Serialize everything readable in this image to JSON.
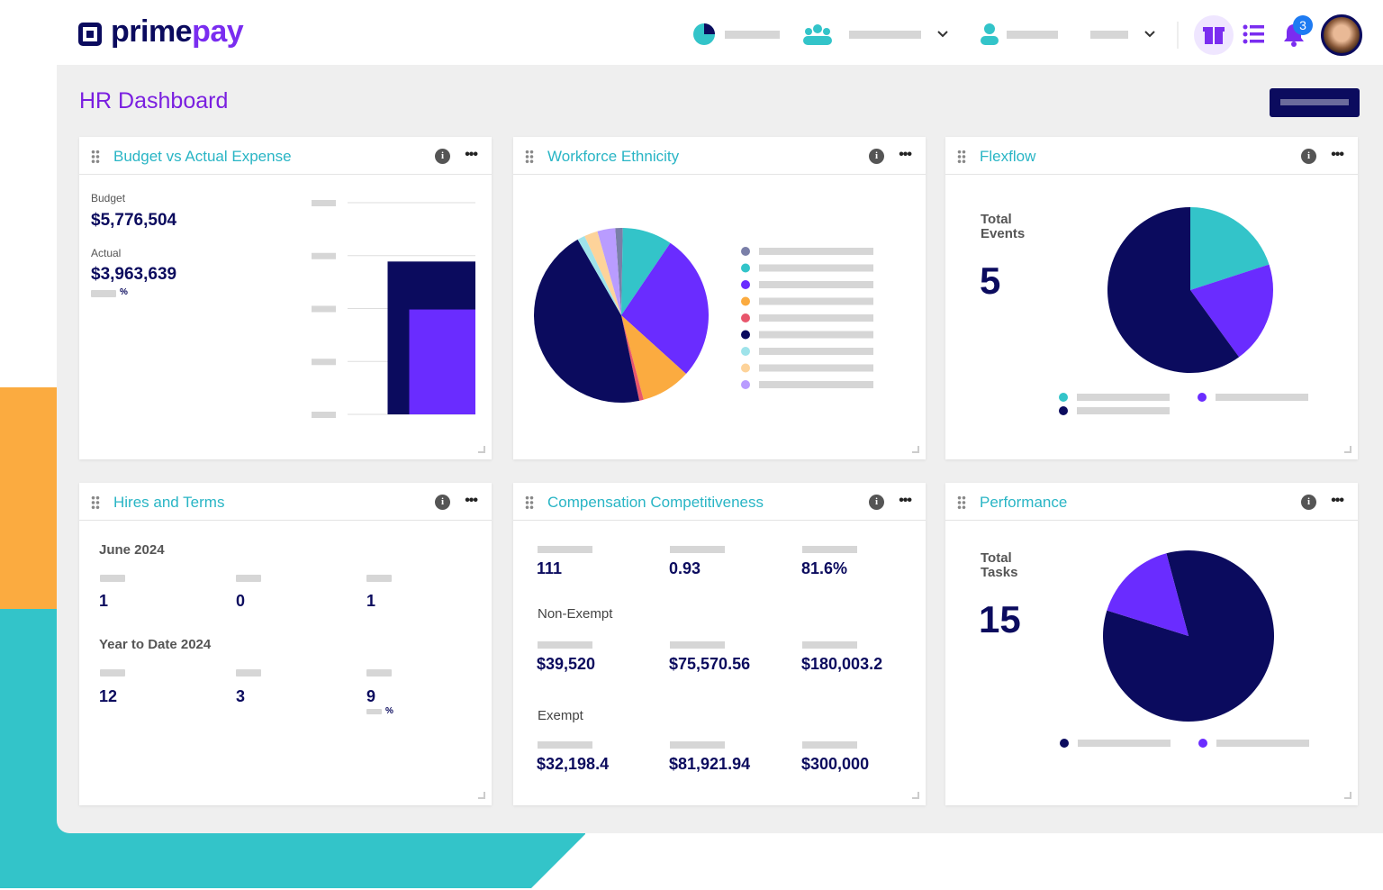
{
  "header": {
    "logo_prime": "prime",
    "logo_pay": "pay",
    "badge": "3"
  },
  "page_title": "HR Dashboard",
  "widgets": {
    "budget": {
      "title": "Budget vs Actual Expense",
      "budget_label": "Budget",
      "budget_value": "$5,776,504",
      "actual_label": "Actual",
      "actual_value": "$3,963,639",
      "percent_sign": "%",
      "chart": {
        "type": "bar",
        "values": [
          5776504,
          3963639
        ],
        "value_labels": [
          "$5,776,504",
          "$3,963,639"
        ],
        "colors": [
          "#0b0b5e",
          "#6a2cff"
        ],
        "ylim": [
          0,
          8000000
        ],
        "yticks": [
          0,
          2000000,
          4000000,
          6000000,
          8000000
        ],
        "grid": true
      }
    },
    "ethnicity": {
      "title": "Workforce Ethnicity",
      "chart": {
        "type": "pie",
        "values": [
          1.4,
          9.2,
          27.2,
          9.2,
          0.8,
          45,
          1.4,
          2.5,
          3.3
        ],
        "colors": [
          "#7a7fa8",
          "#33c4c9",
          "#6a2cff",
          "#fbab40",
          "#e8566c",
          "#0b0b5e",
          "#9ee3ea",
          "#fdd39a",
          "#b99cff"
        ]
      }
    },
    "flexflow": {
      "title": "Flexflow",
      "total_label": "Total Events",
      "total_value": "5",
      "chart": {
        "type": "pie",
        "values": [
          1,
          1,
          3
        ],
        "colors": [
          "#33c4c9",
          "#6a2cff",
          "#0b0b5e"
        ]
      }
    },
    "hires": {
      "title": "Hires and Terms",
      "period1": "June 2024",
      "period1_values": [
        "1",
        "0",
        "1"
      ],
      "period2": "Year to Date 2024",
      "period2_values": [
        "12",
        "3",
        "9"
      ],
      "percent_sign": "%"
    },
    "compensation": {
      "title": "Compensation Competitiveness",
      "row1": [
        "111",
        "0.93",
        "81.6%"
      ],
      "section2": "Non-Exempt",
      "row2": [
        "$39,520",
        "$75,570.56",
        "$180,003.2"
      ],
      "section3": "Exempt",
      "row3": [
        "$32,198.4",
        "$81,921.94",
        "$300,000"
      ]
    },
    "performance": {
      "title": "Performance",
      "total_label": "Total Tasks",
      "total_value": "15",
      "chart": {
        "type": "pie",
        "values": [
          84,
          16
        ],
        "colors": [
          "#0b0b5e",
          "#6a2cff"
        ]
      }
    }
  }
}
